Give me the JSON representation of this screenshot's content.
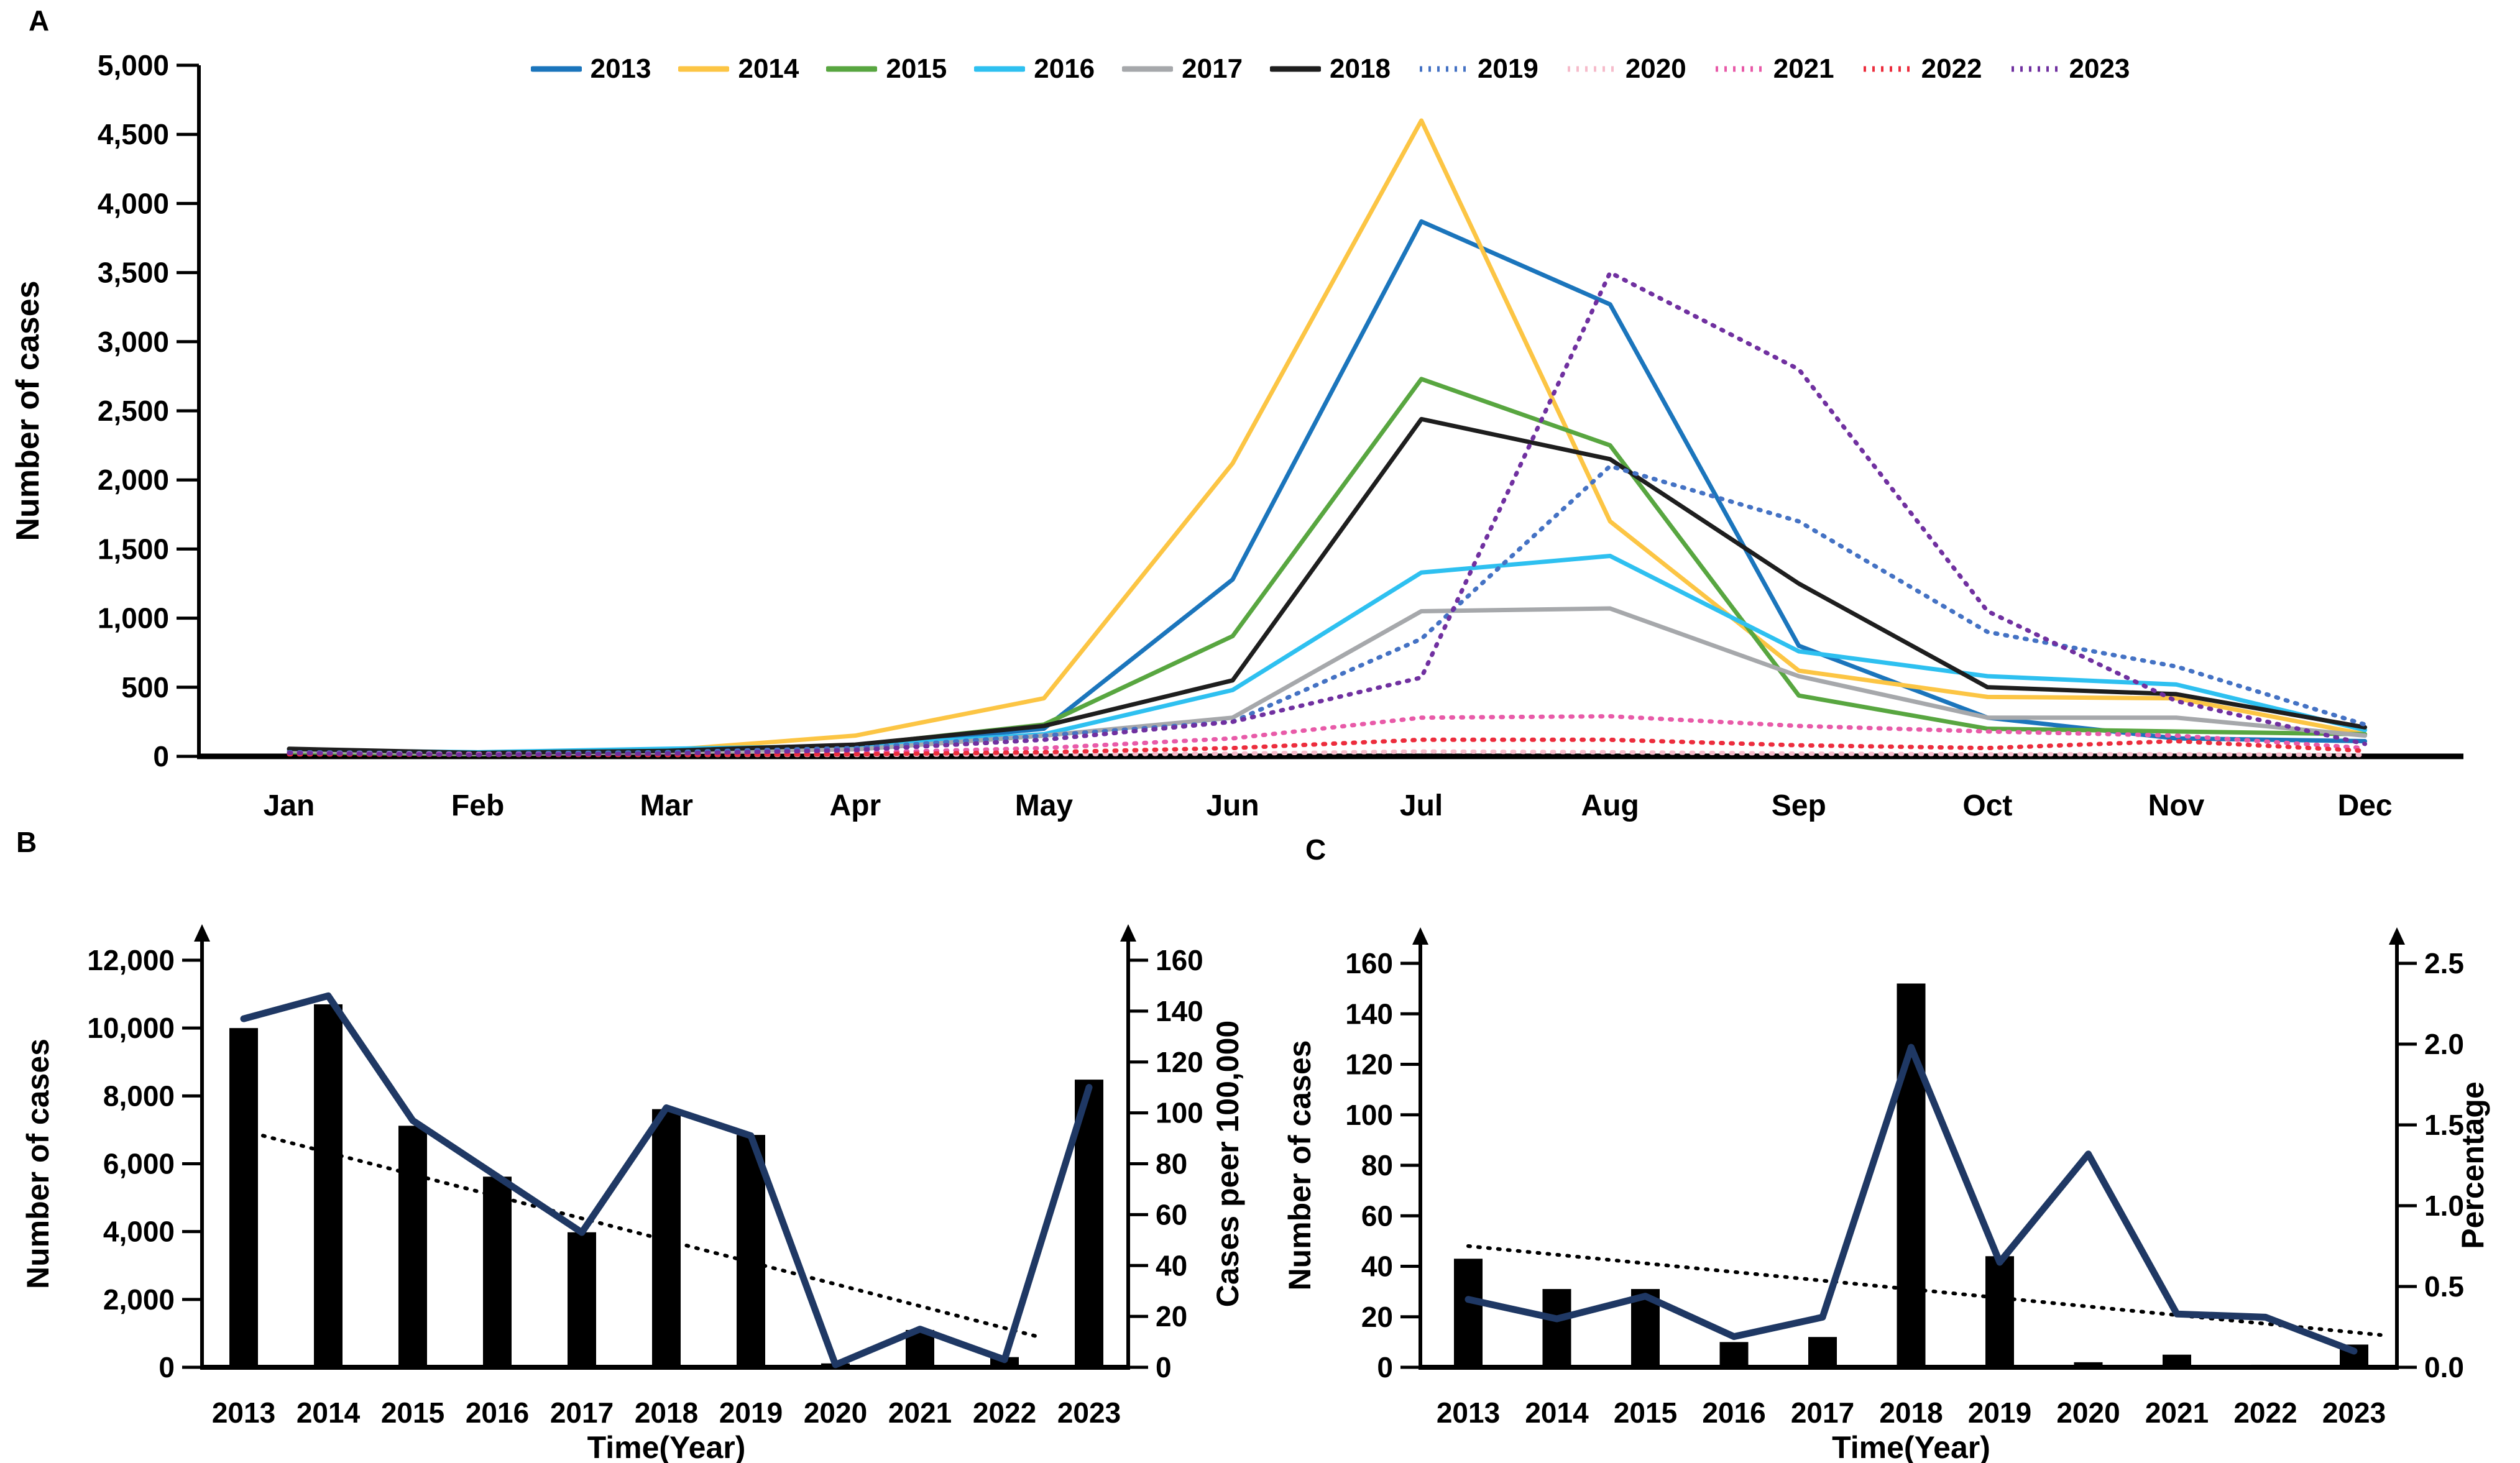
{
  "figure": {
    "background": "#ffffff",
    "panel_labels": {
      "a": "A",
      "b": "B",
      "c": "C"
    }
  },
  "chart_data": [
    {
      "panel": "A",
      "type": "line",
      "title": "",
      "xlabel": "",
      "ylabel": "Number of cases",
      "x_categories": [
        "Jan",
        "Feb",
        "Mar",
        "Apr",
        "May",
        "Jun",
        "Jul",
        "Aug",
        "Sep",
        "Oct",
        "Nov",
        "Dec"
      ],
      "ylim": [
        0,
        5000
      ],
      "ytick_values": [
        0,
        500,
        1000,
        1500,
        2000,
        2500,
        3000,
        3500,
        4000,
        4500,
        5000
      ],
      "ytick_labels": [
        "0",
        "500",
        "1,000",
        "1,500",
        "2,000",
        "2,500",
        "3,000",
        "3,500",
        "4,000",
        "4,500",
        "5,000"
      ],
      "grid": false,
      "legend_position": "top",
      "series": [
        {
          "name": "2013",
          "color": "#1b75bc",
          "line_style": "solid",
          "values": [
            45,
            25,
            35,
            70,
            200,
            1280,
            3870,
            3270,
            800,
            280,
            130,
            110
          ]
        },
        {
          "name": "2014",
          "color": "#fcc544",
          "line_style": "solid",
          "values": [
            35,
            20,
            45,
            150,
            420,
            2120,
            4600,
            1700,
            620,
            430,
            420,
            160
          ]
        },
        {
          "name": "2015",
          "color": "#58a640",
          "line_style": "solid",
          "values": [
            30,
            15,
            30,
            80,
            230,
            870,
            2730,
            2250,
            440,
            200,
            180,
            160
          ]
        },
        {
          "name": "2016",
          "color": "#2ec0f0",
          "line_style": "solid",
          "values": [
            45,
            30,
            55,
            75,
            160,
            480,
            1330,
            1450,
            760,
            580,
            520,
            190
          ]
        },
        {
          "name": "2017",
          "color": "#a6a8ab",
          "line_style": "solid",
          "values": [
            40,
            20,
            30,
            50,
            150,
            280,
            1050,
            1070,
            580,
            280,
            280,
            150
          ]
        },
        {
          "name": "2018",
          "color": "#1e1e1e",
          "line_style": "solid",
          "values": [
            55,
            25,
            40,
            85,
            220,
            550,
            2440,
            2150,
            1250,
            500,
            450,
            210
          ]
        },
        {
          "name": "2019",
          "color": "#4472c4",
          "line_style": "dotted",
          "values": [
            30,
            20,
            30,
            60,
            150,
            250,
            850,
            2100,
            1700,
            900,
            650,
            230
          ]
        },
        {
          "name": "2020",
          "color": "#f6bccb",
          "line_style": "dotted",
          "values": [
            25,
            15,
            10,
            10,
            15,
            20,
            35,
            30,
            20,
            15,
            15,
            10
          ]
        },
        {
          "name": "2021",
          "color": "#e85aa8",
          "line_style": "dotted",
          "values": [
            20,
            15,
            15,
            25,
            60,
            130,
            280,
            290,
            220,
            180,
            150,
            60
          ]
        },
        {
          "name": "2022",
          "color": "#ec2d3d",
          "line_style": "dotted",
          "values": [
            15,
            10,
            10,
            15,
            30,
            60,
            120,
            120,
            80,
            60,
            110,
            40
          ]
        },
        {
          "name": "2023",
          "color": "#7030a0",
          "line_style": "dotted",
          "values": [
            25,
            10,
            20,
            45,
            120,
            250,
            570,
            3500,
            2800,
            1050,
            400,
            90
          ]
        }
      ]
    },
    {
      "panel": "B",
      "type": "bar+line",
      "title": "",
      "xlabel": "Time(Year)",
      "ylabel_left": "Number of cases",
      "ylabel_right": "Cases peer 100,000",
      "categories": [
        "2013",
        "2014",
        "2015",
        "2016",
        "2017",
        "2018",
        "2019",
        "2020",
        "2021",
        "2022",
        "2023"
      ],
      "ylim_left": [
        0,
        12000
      ],
      "ytick_labels_left": [
        "0",
        "2,000",
        "4,000",
        "6,000",
        "8,000",
        "10,000",
        "12,000"
      ],
      "ylim_right": [
        0,
        160
      ],
      "ytick_labels_right": [
        "0",
        "20",
        "40",
        "60",
        "80",
        "100",
        "120",
        "140",
        "160"
      ],
      "bar_color": "#000000",
      "bars": [
        10000,
        10700,
        7120,
        5620,
        3980,
        7610,
        6850,
        115,
        1100,
        300,
        8480
      ],
      "line": {
        "name": "cases-per-100000",
        "color": "#1f3864",
        "axis": "right",
        "values": [
          137,
          146,
          97,
          75,
          53,
          102,
          91,
          1,
          15,
          3,
          110
        ]
      },
      "trend_line": {
        "style": "dotted",
        "color": "#000000",
        "axis": "right",
        "start_year": 2013,
        "end_year": 2022.4,
        "start_value": 93,
        "end_value": 12
      }
    },
    {
      "panel": "C",
      "type": "bar+line",
      "title": "",
      "xlabel": "Time(Year)",
      "ylabel_left": "Number of cases",
      "ylabel_right": "Percentage",
      "categories": [
        "2013",
        "2014",
        "2015",
        "2016",
        "2017",
        "2018",
        "2019",
        "2020",
        "2021",
        "2022",
        "2023"
      ],
      "ylim_left": [
        0,
        160
      ],
      "ytick_labels_left": [
        "0",
        "20",
        "40",
        "60",
        "80",
        "100",
        "120",
        "140",
        "160"
      ],
      "ylim_right": [
        0,
        2.5
      ],
      "ytick_labels_right": [
        "0.0",
        "0.5",
        "1.0",
        "1.5",
        "2.0",
        "2.5"
      ],
      "bar_color": "#000000",
      "bars": [
        43,
        31,
        31,
        10,
        12,
        152,
        44,
        2,
        5,
        1,
        9
      ],
      "line": {
        "name": "percentage",
        "color": "#1f3864",
        "axis": "right",
        "values": [
          0.42,
          0.3,
          0.44,
          0.19,
          0.31,
          1.98,
          0.65,
          1.32,
          0.33,
          0.31,
          0.1
        ]
      },
      "trend_line": {
        "style": "dotted",
        "color": "#000000",
        "axis": "right",
        "start_year": 2013,
        "end_year": 2023.3,
        "start_value": 0.75,
        "end_value": 0.2
      }
    }
  ]
}
